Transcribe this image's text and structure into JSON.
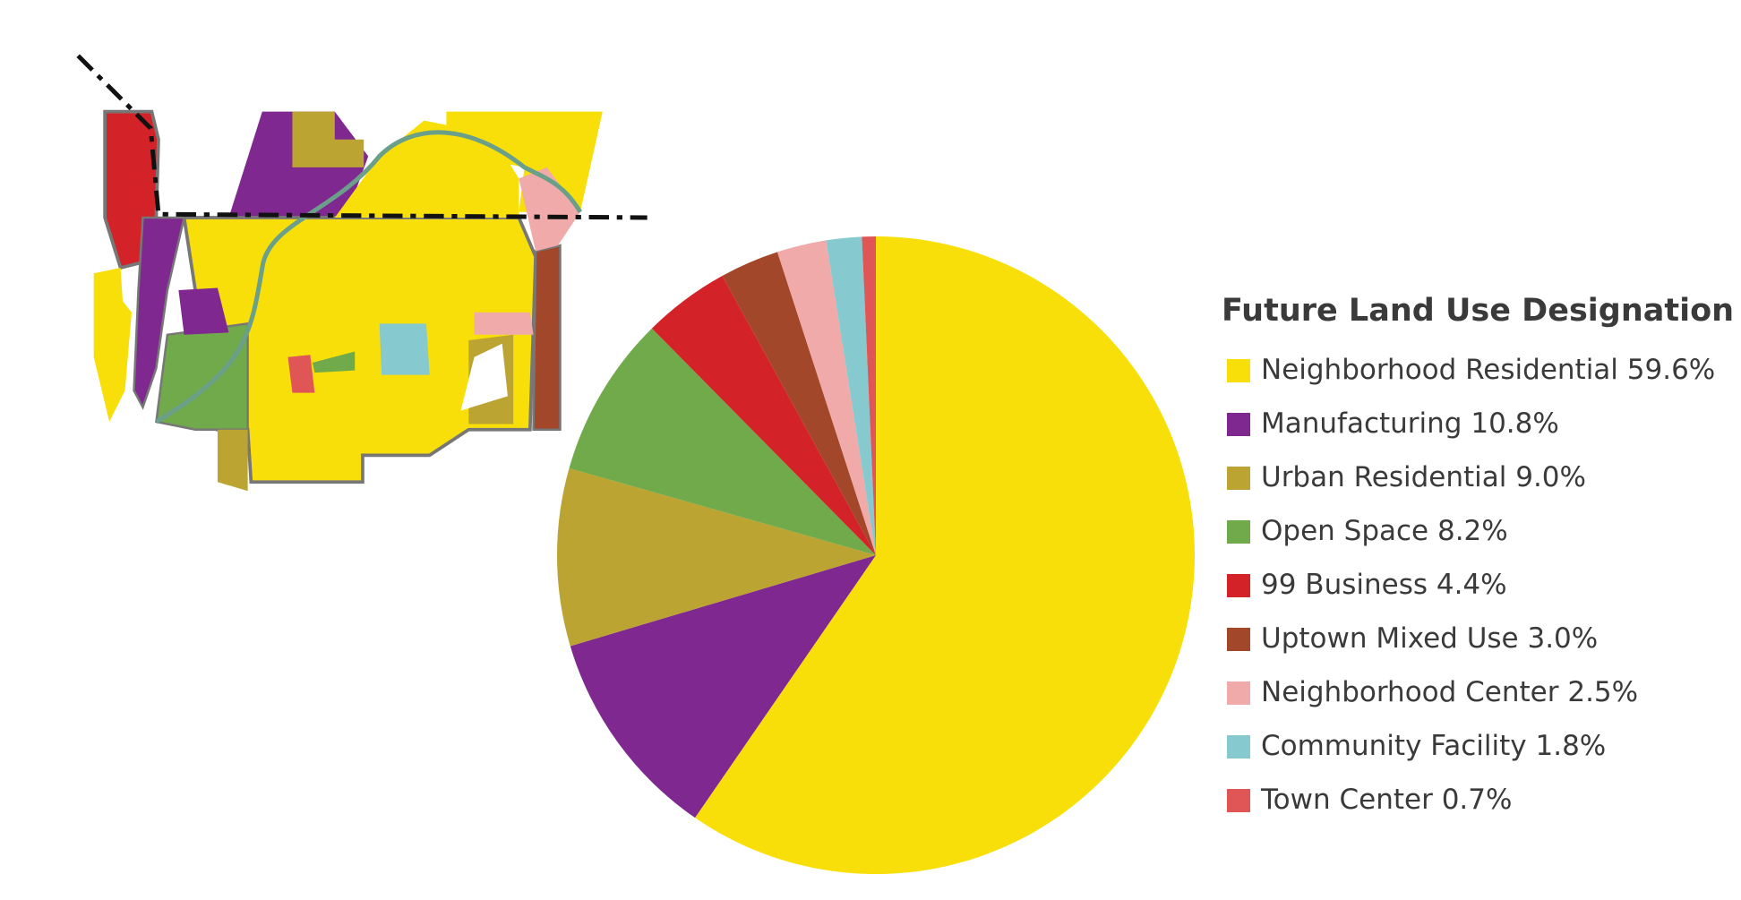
{
  "chart_data": {
    "type": "pie",
    "legend_title": "Future Land Use Designation",
    "categories": [
      "Neighborhood Residential",
      "Manufacturing",
      "Urban Residential",
      "Open Space",
      "99 Business",
      "Uptown Mixed Use",
      "Neighborhood Center",
      "Community Facility",
      "Town Center"
    ],
    "values": [
      59.6,
      10.8,
      9.0,
      8.2,
      4.4,
      3.0,
      2.5,
      1.8,
      0.7
    ],
    "value_labels": [
      "59.6%",
      "10.8%",
      "9.0%",
      "8.2%",
      "4.4%",
      "3.0%",
      "2.5%",
      "1.8%",
      "0.7%"
    ],
    "colors": [
      "#f9df0a",
      "#7f2890",
      "#bba431",
      "#70aa4a",
      "#d42328",
      "#a2472a",
      "#f0aaaa",
      "#86c9cf",
      "#e05656"
    ],
    "legend": "right"
  }
}
